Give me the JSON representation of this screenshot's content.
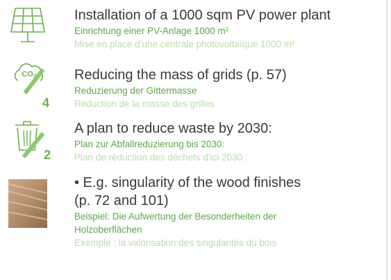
{
  "items": [
    {
      "title": [
        "Installation of a 1000 sqm PV power plant"
      ],
      "de": [
        "Einrichtung einer PV-Anlage 1000 m²"
      ],
      "fr": [
        "Mise en place d’une centrale photovoltaïque 1000 m²"
      ]
    },
    {
      "icon_label": "CO₂",
      "icon_number": "4",
      "title": [
        "Reducing the mass of grids (p. 57)"
      ],
      "de": [
        "Reduzierung der Gittermasse"
      ],
      "fr": [
        "Réduction de la masse des grilles"
      ]
    },
    {
      "icon_number": "2",
      "title": [
        "A plan to reduce waste by 2030:"
      ],
      "de": [
        "Plan zur Abfallreduzierung bis 2030:"
      ],
      "fr": [
        "Plan de réduction des déchets d'ici 2030 :"
      ]
    },
    {
      "title": [
        "• E.g. singularity of the wood finishes",
        "(p. 72 and 101)"
      ],
      "de": [
        "Beispiel: Die Aufwertung der Besonderheiten der",
        "Holzoberflächen"
      ],
      "fr": [
        "Exemple : la valorisation des singularités du bois"
      ]
    }
  ]
}
